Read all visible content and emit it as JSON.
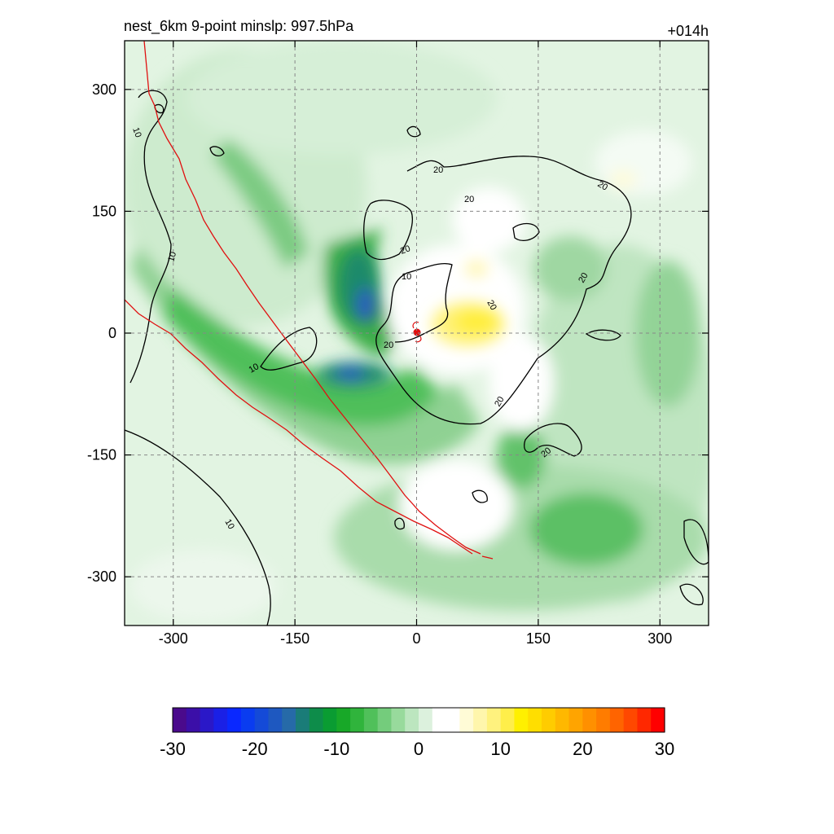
{
  "title_left": "nest_6km  9-point minslp: 997.5hPa",
  "title_right": "+014h",
  "chart_data": {
    "type": "heatmap",
    "title": "nest_6km  9-point minslp: 997.5hPa",
    "forecast_hour_label": "+014h",
    "xlim": [
      -360,
      360
    ],
    "ylim": [
      -360,
      360
    ],
    "x_ticks": [
      -300,
      -150,
      0,
      150,
      300
    ],
    "y_ticks": [
      -300,
      -150,
      0,
      150,
      300
    ],
    "x_tick_labels": [
      "-300",
      "-150",
      "0",
      "150",
      "300"
    ],
    "y_tick_labels": [
      "-300",
      "-150",
      "0",
      "150",
      "300"
    ],
    "grid": "dashed",
    "colorbar": {
      "range": [
        -30,
        30
      ],
      "tick_values": [
        -30,
        -20,
        -10,
        0,
        10,
        20,
        30
      ],
      "tick_labels": [
        "-30",
        "-20",
        "-10",
        "0",
        "10",
        "20",
        "30"
      ],
      "colors": [
        "#4a0a8c",
        "#3b0fa8",
        "#2a18c8",
        "#1a20e6",
        "#0a28ff",
        "#0a3cf0",
        "#144ad8",
        "#1e58c0",
        "#266aa8",
        "#1a7c78",
        "#0e8c4a",
        "#0a9c32",
        "#18a828",
        "#30b43c",
        "#50c05a",
        "#74cc7c",
        "#98da9c",
        "#bce6bf",
        "#dcf1dd",
        "#ffffff",
        "#ffffff",
        "#fffbd6",
        "#fff6ac",
        "#fff27e",
        "#ffee4a",
        "#fff000",
        "#ffde00",
        "#ffcc00",
        "#ffb800",
        "#ffa400",
        "#ff9000",
        "#ff7c00",
        "#ff6400",
        "#ff4800",
        "#ff2800",
        "#ff0000"
      ]
    },
    "field_features": [
      {
        "kind": "negative-max",
        "x": -80,
        "y": 60,
        "value": -20
      },
      {
        "kind": "negative-max",
        "x": -80,
        "y": -50,
        "value": -20
      },
      {
        "kind": "negative-band",
        "x": -170,
        "y": -60,
        "value": -12
      },
      {
        "kind": "negative-band",
        "x": -100,
        "y": 140,
        "value": -10
      },
      {
        "kind": "negative-band",
        "x": 170,
        "y": -250,
        "value": -8
      },
      {
        "kind": "positive-max",
        "x": 80,
        "y": 15,
        "value": 8
      }
    ],
    "contour_labels": [
      "10",
      "20"
    ],
    "storm_center": {
      "x": 0,
      "y": 0
    }
  }
}
